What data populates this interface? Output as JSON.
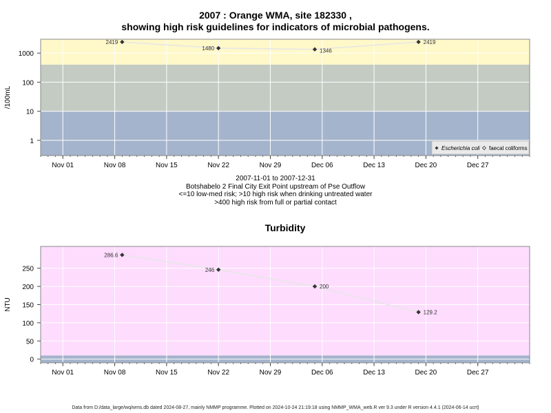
{
  "header": {
    "title_line1": "2007 : Orange WMA, site 182330 ,",
    "title_line2": "showing high risk guidelines for indicators of microbial pathogens."
  },
  "caption": {
    "line1": "2007-11-01 to 2007-12-31",
    "line2": "Botshabelo 2 Final City Exit Point upstream of Pse Outflow",
    "line3": "<=10 low-med risk; >10 high risk when drinking untreated water",
    "line4": ">400 high risk from full or partial contact"
  },
  "footer": {
    "text": "Data from D:/data_large/wq/wms.db dated 2024-08-27, mainly NMMP programme. Plotted on 2024-10-24 21:19:18 using NMMP_WMA_web.R ver 9.3 under R version 4.4.1 (2024-06-14 ucrt)"
  },
  "colors": {
    "band_high": "#fff8c8",
    "band_mid": "#c3cbc3",
    "band_low": "#a4b4cc",
    "turbidity_bg": "#fddcfd",
    "grid": "#ffffff",
    "line": "#e6e6e6",
    "point": "#333333"
  },
  "chart_data": [
    {
      "type": "scatter",
      "title": "",
      "ylabel": "/100mL",
      "yscale": "log",
      "ylim": [
        0.3,
        3000
      ],
      "xlim": [
        "2007-10-29",
        "2008-01-03"
      ],
      "x_ticks": [
        "Nov 01",
        "Nov 08",
        "Nov 15",
        "Nov 22",
        "Nov 29",
        "Dec 06",
        "Dec 13",
        "Dec 20",
        "Dec 27"
      ],
      "x_tick_dates": [
        "2007-11-01",
        "2007-11-08",
        "2007-11-15",
        "2007-11-22",
        "2007-11-29",
        "2007-12-06",
        "2007-12-13",
        "2007-12-20",
        "2007-12-27"
      ],
      "y_ticks": [
        1,
        10,
        100,
        1000
      ],
      "y_tick_labels": [
        "1",
        "10",
        "100",
        "1000"
      ],
      "risk_bands": [
        {
          "from": 400,
          "to": 3000,
          "color": "#fff8c8"
        },
        {
          "from": 10,
          "to": 400,
          "color": "#c3cbc3"
        },
        {
          "from": 0.3,
          "to": 10,
          "color": "#a4b4cc"
        }
      ],
      "legend": {
        "placement": "bottom-right",
        "entries": [
          "Escherichia coli",
          "faecal coliforms"
        ]
      },
      "series": [
        {
          "name": "Escherichia coli",
          "marker": "filled-diamond",
          "points": [
            {
              "x": "2007-11-09",
              "y": 2419,
              "label": "2419"
            },
            {
              "x": "2007-11-22",
              "y": 1480,
              "label": "1480"
            },
            {
              "x": "2007-12-05",
              "y": 1346,
              "label": "1346"
            },
            {
              "x": "2007-12-19",
              "y": 2419,
              "label": "2419"
            }
          ]
        }
      ]
    },
    {
      "type": "scatter",
      "title": "Turbidity",
      "ylabel": "NTU",
      "ylim": [
        -10,
        310
      ],
      "xlim": [
        "2007-10-29",
        "2008-01-03"
      ],
      "x_ticks": [
        "Nov 01",
        "Nov 08",
        "Nov 15",
        "Nov 22",
        "Nov 29",
        "Dec 06",
        "Dec 13",
        "Dec 20",
        "Dec 27"
      ],
      "x_tick_dates": [
        "2007-11-01",
        "2007-11-08",
        "2007-11-15",
        "2007-11-22",
        "2007-11-29",
        "2007-12-06",
        "2007-12-13",
        "2007-12-20",
        "2007-12-27"
      ],
      "y_ticks": [
        0,
        50,
        100,
        150,
        200,
        250
      ],
      "y_tick_labels": [
        "0",
        "50",
        "100",
        "150",
        "200",
        "250"
      ],
      "bands": [
        {
          "from": -10,
          "to": 10,
          "color": "#a4b4cc"
        },
        {
          "from": 10,
          "to": 310,
          "color": "#fddcfd"
        }
      ],
      "series": [
        {
          "marker": "filled-diamond",
          "points": [
            {
              "x": "2007-11-09",
              "y": 286.6,
              "label": "286.6"
            },
            {
              "x": "2007-11-22",
              "y": 246,
              "label": "246"
            },
            {
              "x": "2007-12-05",
              "y": 200,
              "label": "200"
            },
            {
              "x": "2007-12-19",
              "y": 129.2,
              "label": "129.2"
            }
          ]
        }
      ]
    }
  ]
}
